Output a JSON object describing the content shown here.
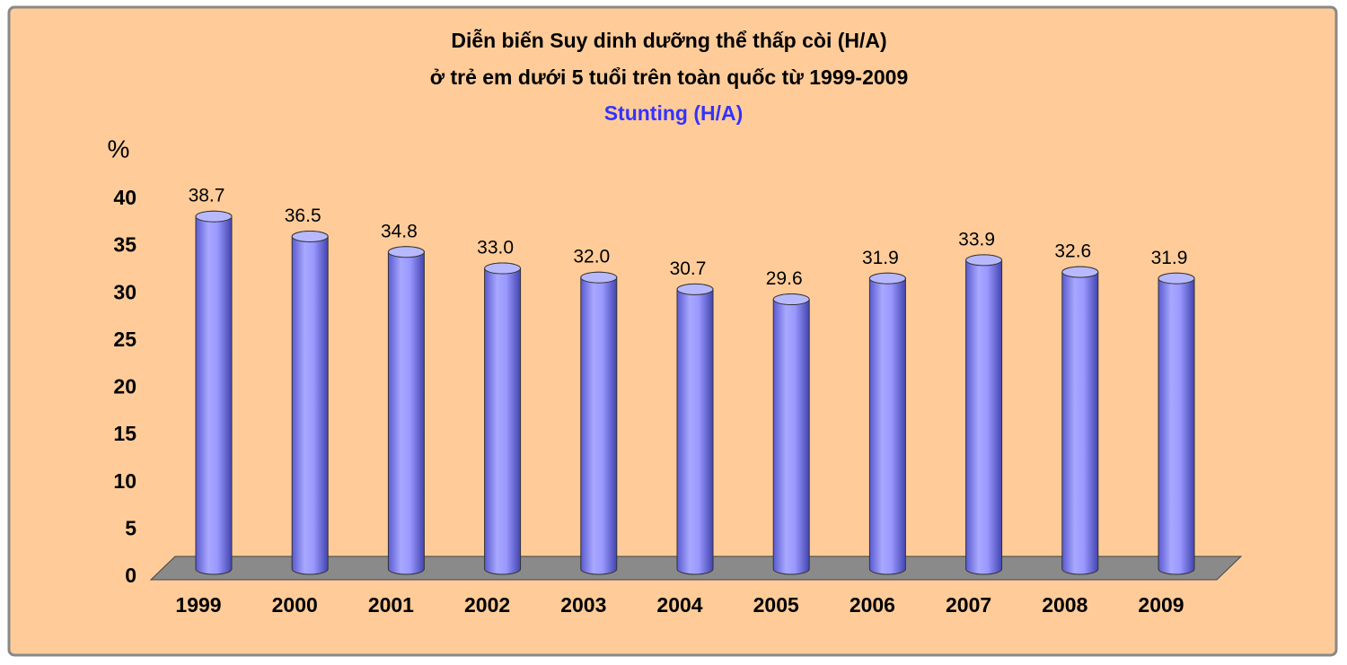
{
  "chart_data": {
    "type": "bar",
    "title_lines": [
      "Diễn biến Suy dinh dưỡng thể thấp còi (H/A)",
      "ở trẻ em dưới 5 tuổi trên toàn quốc từ 1999-2009"
    ],
    "y_label": "%",
    "categories": [
      "1999",
      "2000",
      "2001",
      "2002",
      "2003",
      "2004",
      "2005",
      "2006",
      "2007",
      "2008",
      "2009"
    ],
    "series": [
      {
        "name": "Stunting (H/A)",
        "color": "#9999ff",
        "values": [
          38.7,
          36.5,
          34.8,
          33.0,
          32.0,
          30.7,
          29.6,
          31.9,
          33.9,
          32.6,
          31.9
        ],
        "value_labels": [
          "38.7",
          "36.5",
          "34.8",
          "33.0",
          "32.0",
          "30.7",
          "29.6",
          "31.9",
          "33.9",
          "32.6",
          "31.9"
        ]
      }
    ],
    "ylim": [
      0,
      40
    ],
    "yticks": [
      0,
      5,
      10,
      15,
      20,
      25,
      30,
      35,
      40
    ],
    "grid": false
  }
}
